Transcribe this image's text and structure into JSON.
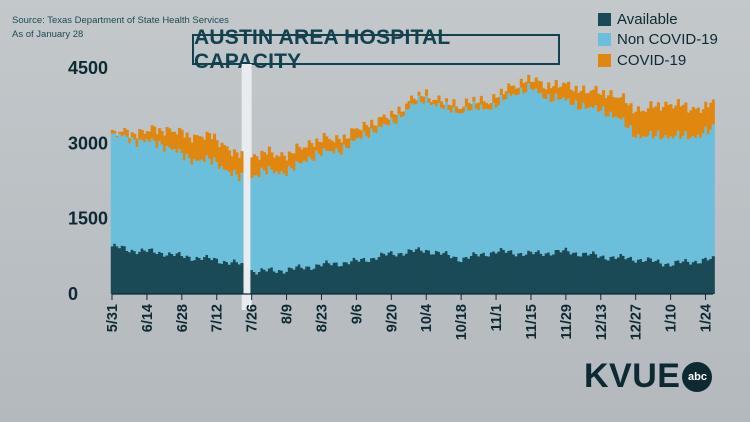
{
  "source": {
    "line1": "Source: Texas Department of State Health Services",
    "line2": "As of January 28"
  },
  "logo": {
    "text": "KVUE",
    "badge": "abc"
  },
  "colors": {
    "available": "#1b4a57",
    "non_covid": "#6bbfdb",
    "covid": "#e0870f",
    "gap": "#e8ecee"
  },
  "chart_data": {
    "type": "bar",
    "stacked": true,
    "title": "AUSTIN AREA HOSPITAL CAPACITY",
    "xlabel": "",
    "ylabel": "",
    "ylim": [
      0,
      4500
    ],
    "yticks": [
      0,
      1500,
      3000,
      4500
    ],
    "grid": false,
    "legend_position": "top-right",
    "x_tick_labels": [
      "5/31",
      "6/14",
      "6/28",
      "7/12",
      "7/26",
      "8/9",
      "8/23",
      "9/6",
      "9/20",
      "10/4",
      "10/18",
      "11/1",
      "11/15",
      "11/29",
      "12/13",
      "12/27",
      "1/10",
      "1/24"
    ],
    "missing_data_period": [
      "7/22",
      "7/26"
    ],
    "keyframes": [
      {
        "date": "5/31",
        "available": 950,
        "non_covid": 2150,
        "covid": 40
      },
      {
        "date": "6/7",
        "available": 880,
        "non_covid": 2250,
        "covid": 120
      },
      {
        "date": "6/14",
        "available": 850,
        "non_covid": 2200,
        "covid": 200
      },
      {
        "date": "6/21",
        "available": 820,
        "non_covid": 2100,
        "covid": 320
      },
      {
        "date": "6/28",
        "available": 750,
        "non_covid": 2050,
        "covid": 420
      },
      {
        "date": "7/5",
        "available": 720,
        "non_covid": 1950,
        "covid": 480
      },
      {
        "date": "7/12",
        "available": 680,
        "non_covid": 1900,
        "covid": 470
      },
      {
        "date": "7/21",
        "available": 600,
        "non_covid": 1750,
        "covid": 420
      },
      {
        "date": "7/27",
        "available": 450,
        "non_covid": 1900,
        "covid": 380
      },
      {
        "date": "8/9",
        "available": 480,
        "non_covid": 2000,
        "covid": 330
      },
      {
        "date": "8/23",
        "available": 580,
        "non_covid": 2200,
        "covid": 270
      },
      {
        "date": "9/6",
        "available": 650,
        "non_covid": 2380,
        "covid": 200
      },
      {
        "date": "9/20",
        "available": 800,
        "non_covid": 2650,
        "covid": 150
      },
      {
        "date": "10/4",
        "available": 880,
        "non_covid": 3000,
        "covid": 100
      },
      {
        "date": "10/18",
        "available": 700,
        "non_covid": 2900,
        "covid": 120
      },
      {
        "date": "11/1",
        "available": 850,
        "non_covid": 2950,
        "covid": 150
      },
      {
        "date": "11/15",
        "available": 800,
        "non_covid": 3300,
        "covid": 180
      },
      {
        "date": "11/29",
        "available": 850,
        "non_covid": 2950,
        "covid": 300
      },
      {
        "date": "12/13",
        "available": 750,
        "non_covid": 2950,
        "covid": 350
      },
      {
        "date": "12/27",
        "available": 700,
        "non_covid": 2500,
        "covid": 500
      },
      {
        "date": "1/10",
        "available": 600,
        "non_covid": 2500,
        "covid": 650
      },
      {
        "date": "1/24",
        "available": 680,
        "non_covid": 2550,
        "covid": 500
      }
    ],
    "series": [
      {
        "name": "Available",
        "color": "#1b4a57"
      },
      {
        "name": "Non COVID-19",
        "color": "#6bbfdb"
      },
      {
        "name": "COVID-19",
        "color": "#e0870f"
      }
    ]
  }
}
